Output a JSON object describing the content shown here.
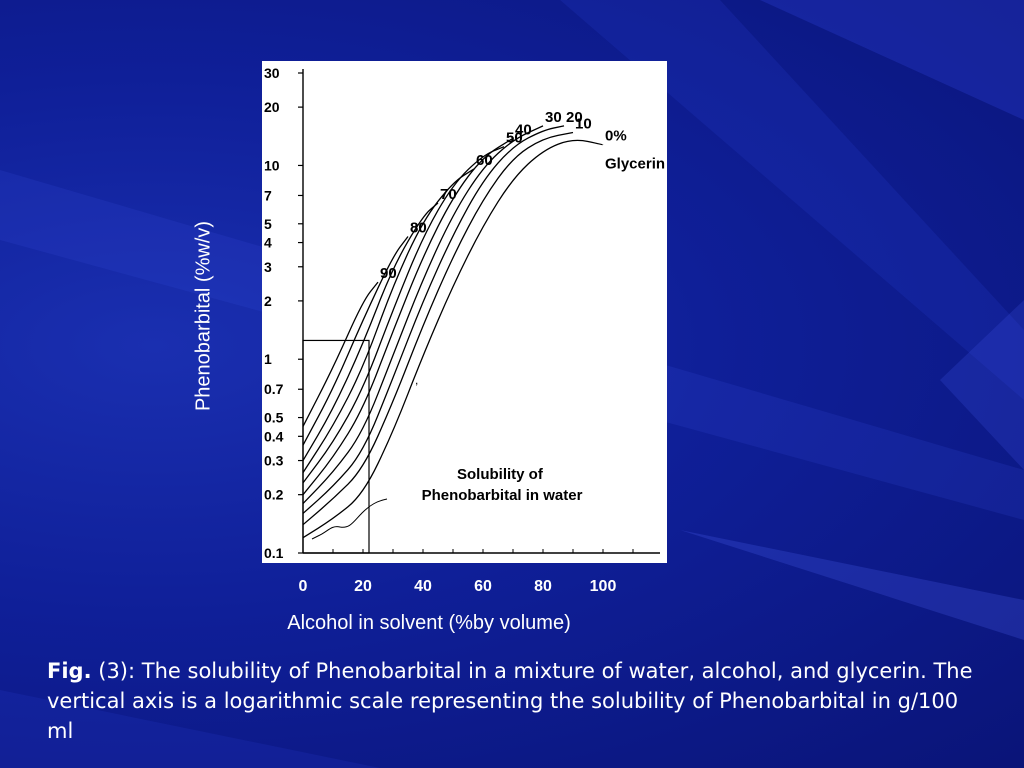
{
  "chart_data": {
    "type": "line",
    "title": "",
    "xlabel": "Alcohol in solvent (%by volume)",
    "ylabel": "Phenobarbital (%w/v)",
    "x_ticks": [
      "0",
      "20",
      "40",
      "60",
      "80",
      "100"
    ],
    "y_ticks": [
      "0.1",
      "0.2",
      "0.3",
      "0.4",
      "0.5",
      "0.7",
      "1",
      "2",
      "3",
      "4",
      "5",
      "7",
      "10",
      "20",
      "30"
    ],
    "xlim": [
      0,
      100
    ],
    "ylim": [
      0.1,
      30
    ],
    "y_scale": "log",
    "grid": false,
    "legend_title": "Glycerin",
    "series": [
      {
        "name": "0%",
        "x": [
          0,
          10,
          20,
          30,
          40,
          50,
          60,
          70,
          80,
          90,
          100
        ],
        "y": [
          0.12,
          0.15,
          0.2,
          0.42,
          1.05,
          2.4,
          4.9,
          8.6,
          12.0,
          13.8,
          12.8
        ]
      },
      {
        "name": "10",
        "x": [
          0,
          10,
          20,
          30,
          40,
          50,
          60,
          70,
          80,
          90
        ],
        "y": [
          0.14,
          0.19,
          0.27,
          0.6,
          1.5,
          3.4,
          6.7,
          11.0,
          13.8,
          14.8
        ]
      },
      {
        "name": "20",
        "x": [
          0,
          10,
          20,
          30,
          40,
          50,
          60,
          70,
          80,
          87
        ],
        "y": [
          0.16,
          0.22,
          0.33,
          0.8,
          2.0,
          4.4,
          8.4,
          12.6,
          15.2,
          16.0
        ]
      },
      {
        "name": "30",
        "x": [
          0,
          10,
          20,
          30,
          40,
          50,
          60,
          70,
          80
        ],
        "y": [
          0.18,
          0.26,
          0.42,
          1.05,
          2.6,
          5.6,
          9.8,
          13.6,
          16.0
        ]
      },
      {
        "name": "40",
        "x": [
          0,
          10,
          20,
          30,
          40,
          50,
          60,
          70
        ],
        "y": [
          0.2,
          0.31,
          0.55,
          1.4,
          3.4,
          6.9,
          11.1,
          13.8
        ]
      },
      {
        "name": "50",
        "x": [
          0,
          10,
          20,
          30,
          40,
          50,
          60,
          67
        ],
        "y": [
          0.23,
          0.37,
          0.7,
          1.8,
          4.3,
          8.0,
          11.3,
          12.5
        ]
      },
      {
        "name": "60",
        "x": [
          0,
          10,
          20,
          30,
          40,
          50,
          57
        ],
        "y": [
          0.26,
          0.45,
          0.9,
          2.4,
          5.2,
          8.2,
          9.6
        ]
      },
      {
        "name": "70",
        "x": [
          0,
          10,
          20,
          30,
          40,
          45
        ],
        "y": [
          0.3,
          0.55,
          1.2,
          3.0,
          5.5,
          6.4
        ]
      },
      {
        "name": "80",
        "x": [
          0,
          10,
          20,
          30,
          35
        ],
        "y": [
          0.36,
          0.7,
          1.6,
          3.4,
          4.3
        ]
      },
      {
        "name": "90",
        "x": [
          0,
          10,
          20,
          25
        ],
        "y": [
          0.45,
          0.9,
          2.0,
          2.5
        ]
      }
    ],
    "annotation": "Solubility of\nPhenobarbital in water"
  },
  "caption": {
    "fig_label": "Fig.",
    "fig_number": "(3):",
    "text": "The solubility of Phenobarbital in a mixture of water, alcohol, and glycerin. The vertical axis is a logarithmic scale representing the solubility of Phenobarbital in g/100 ml"
  }
}
